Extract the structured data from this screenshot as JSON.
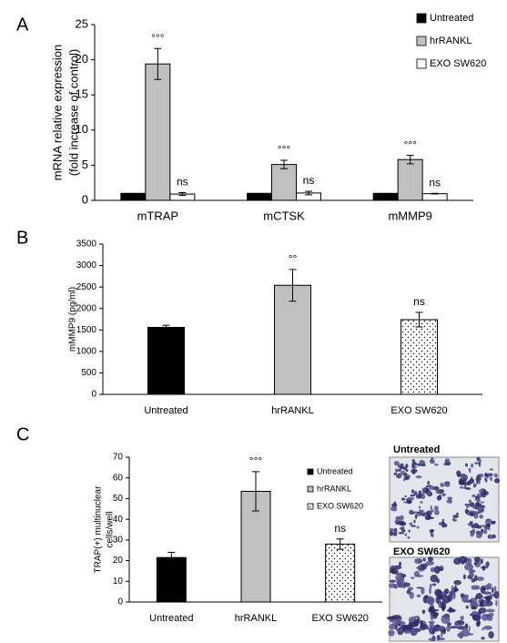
{
  "chart_data": [
    {
      "type": "bar",
      "panel": "A",
      "ylabel": [
        "mRNA relative expression",
        "(fold increase of control)"
      ],
      "categories": [
        "mTRAP",
        "mCTSK",
        "mMMP9"
      ],
      "series": [
        {
          "name": "Untreated",
          "color": "#000000",
          "values": [
            1,
            1,
            1
          ]
        },
        {
          "name": "hrRANKL",
          "color": "#c0c0c0",
          "values": [
            19.4,
            5.1,
            5.8
          ],
          "errors": [
            2.2,
            0.6,
            0.6
          ],
          "annotations": [
            "°°°",
            "°°°",
            "°°°"
          ]
        },
        {
          "name": "EXO SW620",
          "color": "#ffffff",
          "values": [
            0.9,
            1.05,
            0.95
          ],
          "errors": [
            0.2,
            0.25,
            0.05
          ],
          "annotations": [
            "ns",
            "ns",
            "ns"
          ]
        }
      ],
      "ylim": [
        0,
        25
      ],
      "yticks": [
        0,
        5,
        10,
        15,
        20,
        25
      ],
      "legend": "top-right"
    },
    {
      "type": "bar",
      "panel": "B",
      "ylabel": [
        "mMMP9 (pg/ml)"
      ],
      "categories": [
        "Untreated",
        "hrRANKL",
        "EXO SW620"
      ],
      "values": [
        1560,
        2540,
        1740
      ],
      "errors": [
        50,
        370,
        170
      ],
      "colors": [
        "#000000",
        "#c0c0c0",
        "#ffffff"
      ],
      "patterns": [
        "solid",
        "solid",
        "dots"
      ],
      "annotations": [
        null,
        "°°",
        "ns"
      ],
      "ylim": [
        0,
        3500
      ],
      "yticks": [
        0,
        500,
        1000,
        1500,
        2000,
        2500,
        3000,
        3500
      ]
    },
    {
      "type": "bar",
      "panel": "C",
      "ylabel": [
        "TRAP(+) multinuclear",
        "cells/well"
      ],
      "categories": [
        "Untreated",
        "hrRANKL",
        "EXO SW620"
      ],
      "values": [
        21.5,
        53.5,
        28
      ],
      "errors": [
        2.5,
        9.5,
        2.5
      ],
      "colors": [
        "#000000",
        "#c0c0c0",
        "#ffffff"
      ],
      "patterns": [
        "solid",
        "solid",
        "dots"
      ],
      "annotations": [
        null,
        "°°°",
        "ns"
      ],
      "ylim": [
        0,
        70
      ],
      "yticks": [
        0,
        10,
        20,
        30,
        40,
        50,
        60,
        70
      ],
      "legend": "top-right"
    }
  ],
  "micrographs": [
    {
      "label": "Untreated"
    },
    {
      "label": "EXO SW620"
    }
  ]
}
